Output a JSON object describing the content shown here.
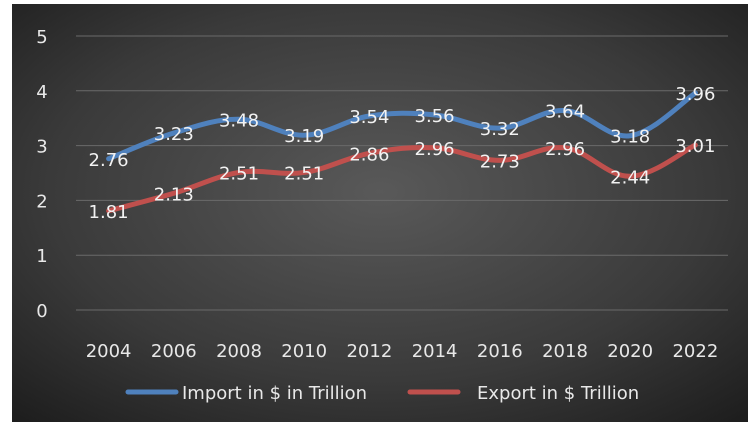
{
  "chart_data": {
    "type": "line",
    "title": "",
    "xlabel": "",
    "ylabel": "",
    "categories": [
      "2004",
      "2006",
      "2008",
      "2010",
      "2012",
      "2014",
      "2016",
      "2018",
      "2020",
      "2022"
    ],
    "ylim": [
      0,
      5
    ],
    "yticks": [
      "0",
      "1",
      "2",
      "3",
      "4",
      "5"
    ],
    "grid": true,
    "legend_position": "bottom",
    "series": [
      {
        "name": "Import in $ in Trillion",
        "color": "#4f81bd",
        "values": [
          2.76,
          3.23,
          3.48,
          3.19,
          3.54,
          3.56,
          3.32,
          3.64,
          3.18,
          3.96
        ],
        "labels": [
          "2.76",
          "3.23",
          "3.48",
          "3.19",
          "3.54",
          "3.56",
          "3.32",
          "3.64",
          "3.18",
          "3.96"
        ]
      },
      {
        "name": "Export in $ Trillion",
        "color": "#c0504d",
        "values": [
          1.81,
          2.13,
          2.51,
          2.51,
          2.86,
          2.96,
          2.73,
          2.96,
          2.44,
          3.01
        ],
        "labels": [
          "1.81",
          "2.13",
          "2.51",
          "2.51",
          "2.86",
          "2.96",
          "2.73",
          "2.96",
          "2.44",
          "3.01"
        ]
      }
    ]
  }
}
